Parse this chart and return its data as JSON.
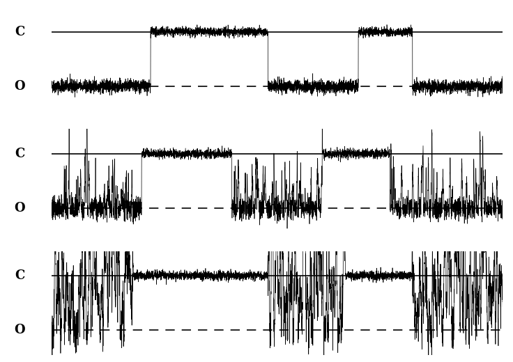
{
  "background_color": "#ffffff",
  "n_traces": 3,
  "trace_labels_C": [
    "C",
    "C",
    "C"
  ],
  "trace_labels_O": [
    "O",
    "O",
    "O"
  ],
  "fig_width": 7.36,
  "fig_height": 5.2,
  "dpi": 100,
  "noise_seed": 42,
  "panels": [
    {
      "C_level": 1.0,
      "O_level": 0.0,
      "noise_C": 0.04,
      "noise_O": 0.06,
      "transitions": [
        0.22,
        0.22,
        0.48,
        0.48,
        0.68,
        0.68,
        0.8,
        0.8
      ],
      "start_state": "O",
      "open_noise_scale": 1.0,
      "closed_noise_scale": 0.5
    },
    {
      "C_level": 1.0,
      "O_level": 0.0,
      "noise_C": 0.04,
      "noise_O": 0.1,
      "transitions": [
        0.2,
        0.2,
        0.4,
        0.4,
        0.6,
        0.6,
        0.75,
        0.75
      ],
      "start_state": "O",
      "open_noise_scale": 2.5,
      "closed_noise_scale": 0.5
    },
    {
      "C_level": 1.0,
      "O_level": 0.0,
      "noise_C": 0.04,
      "noise_O": 0.18,
      "transitions": [
        0.18,
        0.18,
        0.48,
        0.48,
        0.65,
        0.65,
        0.8,
        0.8
      ],
      "start_state": "O",
      "open_noise_scale": 4.0,
      "closed_noise_scale": 0.5
    }
  ]
}
